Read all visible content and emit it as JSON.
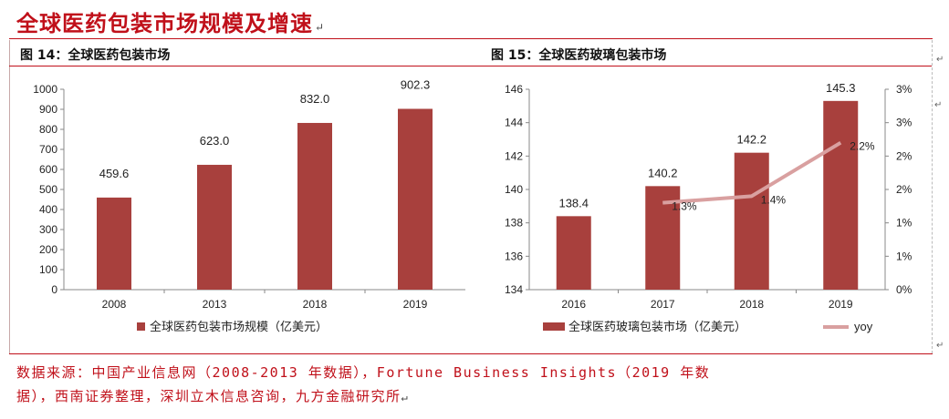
{
  "page": {
    "title": "全球医药包装市场规模及增速",
    "paragraph_mark": "↵",
    "source_line1": "数据来源：中国产业信息网（2008-2013 年数据），Fortune Business Insights（2019 年数",
    "source_line2": "据），西南证券整理，深圳立木信息咨询，九方金融研究所"
  },
  "colors": {
    "bar": "#a8403d",
    "line": "#d9a0a0",
    "accent": "#c0101a"
  },
  "chart_data": [
    {
      "id": "fig14",
      "type": "bar",
      "title": "图 14：全球医药包装市场",
      "categories": [
        "2008",
        "2013",
        "2018",
        "2019"
      ],
      "values": [
        459.6,
        623.0,
        832.0,
        902.3
      ],
      "value_labels": [
        "459.6",
        "623.0",
        "832.0",
        "902.3"
      ],
      "ylim": [
        0,
        1000
      ],
      "yticks": [
        "0",
        "100",
        "200",
        "300",
        "400",
        "500",
        "600",
        "700",
        "800",
        "900",
        "1000"
      ],
      "legend": "全球医药包装市场规模（亿美元）",
      "legend_position": "bottom",
      "grid": false
    },
    {
      "id": "fig15",
      "type": "bar+line",
      "title": "图 15：全球医药玻璃包装市场",
      "categories": [
        "2016",
        "2017",
        "2018",
        "2019"
      ],
      "values": [
        138.4,
        140.2,
        142.2,
        145.3
      ],
      "value_labels": [
        "138.4",
        "140.2",
        "142.2",
        "145.3"
      ],
      "ylim": [
        134,
        146
      ],
      "yticks": [
        "134",
        "136",
        "138",
        "140",
        "142",
        "144",
        "146"
      ],
      "y2ticks": [
        "0%",
        "1%",
        "1%",
        "2%",
        "2%",
        "3%",
        "3%"
      ],
      "y2lim": [
        0,
        3
      ],
      "line_values": [
        null,
        1.3,
        1.4,
        2.2
      ],
      "line_labels": [
        "",
        "1.3%",
        "1.4%",
        "2.2%"
      ],
      "legend_bar": "全球医药玻璃包装市场（亿美元）",
      "legend_line": "yoy",
      "legend_position": "bottom",
      "grid": false
    }
  ]
}
